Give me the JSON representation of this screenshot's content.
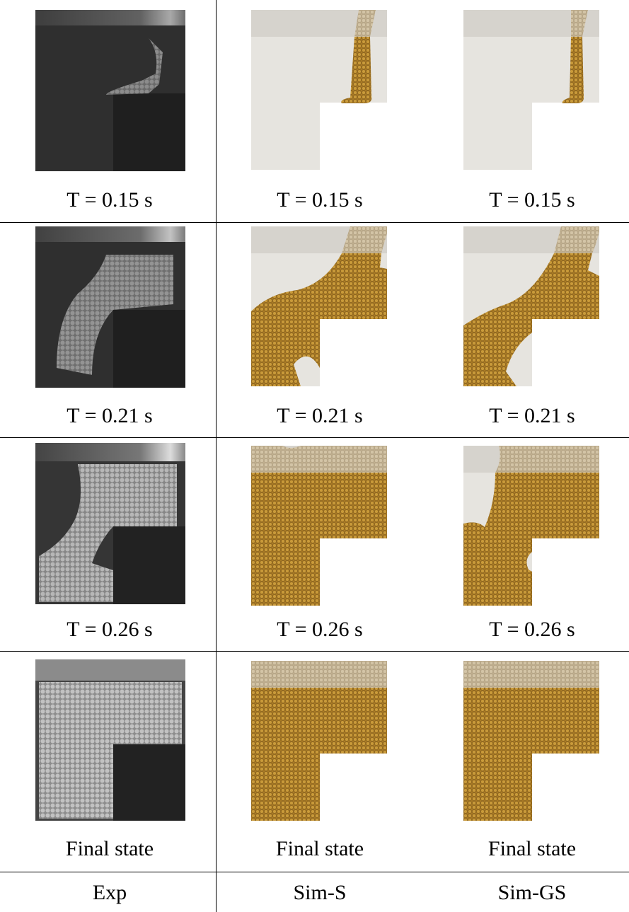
{
  "rows": [
    {
      "cells": [
        "T = 0.15 s",
        "T = 0.15 s",
        "T = 0.15 s"
      ]
    },
    {
      "cells": [
        "T = 0.21 s",
        "T = 0.21 s",
        "T = 0.21 s"
      ]
    },
    {
      "cells": [
        "T = 0.26 s",
        "T = 0.26 s",
        "T = 0.26 s"
      ]
    },
    {
      "cells": [
        "Final state",
        "Final state",
        "Final state"
      ]
    }
  ],
  "columns": [
    "Exp",
    "Sim-S",
    "Sim-GS"
  ]
}
